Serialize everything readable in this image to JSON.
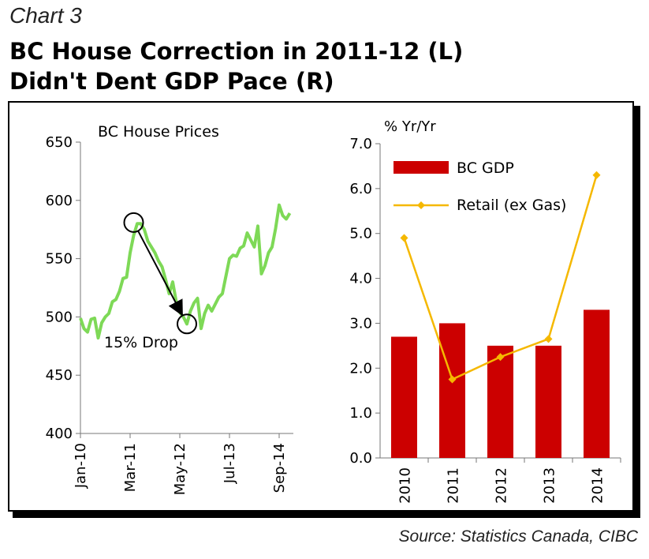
{
  "header": {
    "chart_number": "Chart 3",
    "title_line1": "BC House Correction in 2011-12 (L)",
    "title_line2": "Didn't Dent GDP Pace (R)"
  },
  "source": "Source: Statistics Canada, CIBC",
  "colors": {
    "house_line": "#7ed957",
    "gdp_bar": "#cc0000",
    "retail_line": "#f5b800"
  },
  "chart_data": [
    {
      "type": "line",
      "title": "BC House Prices",
      "ylim": [
        400,
        650
      ],
      "yticks": [
        400,
        450,
        500,
        550,
        600,
        650
      ],
      "xlim": [
        0,
        60
      ],
      "xticks": [
        {
          "pos": 0,
          "label": "Jan-10"
        },
        {
          "pos": 14,
          "label": "Mar-11"
        },
        {
          "pos": 28,
          "label": "May-12"
        },
        {
          "pos": 42,
          "label": "Jul-13"
        },
        {
          "pos": 56,
          "label": "Sep-14"
        }
      ],
      "annotation": {
        "text": "15% Drop",
        "from": {
          "x": 15,
          "y": 581
        },
        "to": {
          "x": 30,
          "y": 494
        }
      },
      "series": [
        {
          "values": [
            499,
            490,
            487,
            498,
            499,
            482,
            495,
            500,
            503,
            513,
            515,
            522,
            533,
            534,
            555,
            570,
            580,
            580,
            575,
            565,
            560,
            555,
            548,
            543,
            532,
            520,
            530,
            513,
            504,
            500,
            494,
            505,
            512,
            516,
            490,
            503,
            510,
            505,
            511,
            517,
            520,
            535,
            550,
            553,
            552,
            559,
            561,
            572,
            566,
            560,
            578,
            537,
            544,
            555,
            560,
            576,
            596,
            587,
            584,
            589
          ]
        }
      ]
    },
    {
      "type": "bar",
      "ylabel": "% Yr/Yr",
      "ylim": [
        0,
        7
      ],
      "yticks": [
        "0.0",
        "1.0",
        "2.0",
        "3.0",
        "4.0",
        "5.0",
        "6.0",
        "7.0"
      ],
      "categories": [
        "2010",
        "2011",
        "2012",
        "2013",
        "2014"
      ],
      "series": [
        {
          "name": "BC GDP",
          "type": "bar",
          "values": [
            2.7,
            3.0,
            2.5,
            2.5,
            3.3
          ]
        },
        {
          "name": "Retail (ex Gas)",
          "type": "line",
          "values": [
            4.9,
            1.75,
            2.25,
            2.65,
            6.3
          ]
        }
      ],
      "legend": "top-left"
    }
  ]
}
